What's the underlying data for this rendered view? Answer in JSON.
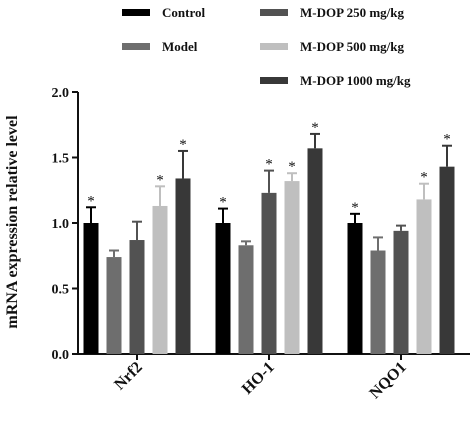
{
  "chart_data": {
    "type": "bar",
    "title": "",
    "xlabel": "",
    "ylabel": "mRNA expression relative level",
    "ylim": [
      0,
      2.0
    ],
    "yticks": [
      "0.0",
      "0.5",
      "1.0",
      "1.5",
      "2.0"
    ],
    "grid": false,
    "legend_position": "top",
    "categories": [
      "Nrf2",
      "HO-1",
      "NQO1"
    ],
    "series": [
      {
        "name": "Control",
        "color": "#000000",
        "values": [
          1.0,
          1.0,
          1.0
        ],
        "errors": [
          0.12,
          0.11,
          0.07
        ],
        "significance": [
          "*",
          "*",
          "*"
        ]
      },
      {
        "name": "Model",
        "color": "#6e6e6e",
        "values": [
          0.74,
          0.83,
          0.79
        ],
        "errors": [
          0.05,
          0.03,
          0.1
        ],
        "significance": [
          "",
          "",
          ""
        ]
      },
      {
        "name": "M-DOP 250 mg/kg",
        "color": "#525252",
        "values": [
          0.87,
          1.23,
          0.94
        ],
        "errors": [
          0.14,
          0.17,
          0.04
        ],
        "significance": [
          "",
          "*",
          ""
        ]
      },
      {
        "name": "M-DOP 500 mg/kg",
        "color": "#bfbfbf",
        "values": [
          1.13,
          1.32,
          1.18
        ],
        "errors": [
          0.15,
          0.06,
          0.12
        ],
        "significance": [
          "*",
          "*",
          "*"
        ]
      },
      {
        "name": "M-DOP 1000 mg/kg",
        "color": "#383838",
        "values": [
          1.34,
          1.57,
          1.43
        ],
        "errors": [
          0.21,
          0.11,
          0.16
        ],
        "significance": [
          "*",
          "*",
          "*"
        ]
      }
    ]
  }
}
